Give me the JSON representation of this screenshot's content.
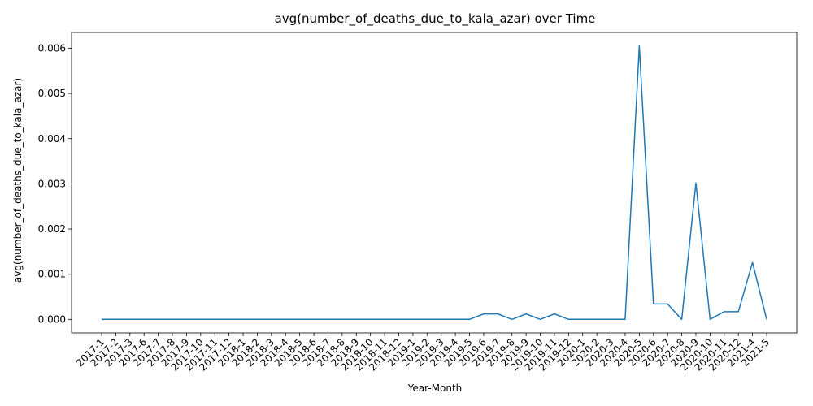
{
  "chart_data": {
    "type": "line",
    "title": "avg(number_of_deaths_due_to_kala_azar) over Time",
    "xlabel": "Year-Month",
    "ylabel": "avg(number_of_deaths_due_to_kala_azar)",
    "x": [
      "2017-1",
      "2017-2",
      "2017-3",
      "2017-6",
      "2017-7",
      "2017-8",
      "2017-9",
      "2017-10",
      "2017-11",
      "2017-12",
      "2018-1",
      "2018-2",
      "2018-3",
      "2018-4",
      "2018-5",
      "2018-6",
      "2018-7",
      "2018-8",
      "2018-9",
      "2018-10",
      "2018-11",
      "2018-12",
      "2019-1",
      "2019-2",
      "2019-3",
      "2019-4",
      "2019-5",
      "2019-6",
      "2019-7",
      "2019-8",
      "2019-9",
      "2019-10",
      "2019-11",
      "2019-12",
      "2020-1",
      "2020-2",
      "2020-3",
      "2020-4",
      "2020-5",
      "2020-6",
      "2020-7",
      "2020-8",
      "2020-9",
      "2020-10",
      "2020-11",
      "2020-12",
      "2021-4",
      "2021-5"
    ],
    "series": [
      {
        "color": "#1f77b4",
        "values": [
          0,
          0,
          0,
          0,
          0,
          0,
          0,
          0,
          0,
          0,
          0,
          0,
          0,
          0,
          0,
          0,
          0,
          0,
          0,
          0,
          0,
          0,
          0,
          0,
          0,
          0,
          0,
          0.00012,
          0.00012,
          0,
          0.00012,
          0,
          0.00012,
          0,
          0,
          0,
          0,
          0,
          0.00605,
          0.00034,
          0.00034,
          0,
          0.00302,
          0,
          0.00017,
          0.00017,
          0.00126,
          0
        ]
      }
    ],
    "yticks": [
      "0.000",
      "0.001",
      "0.002",
      "0.003",
      "0.004",
      "0.005",
      "0.006"
    ],
    "ytick_values": [
      0,
      0.001,
      0.002,
      0.003,
      0.004,
      0.005,
      0.006
    ],
    "ylim": [
      -0.0003,
      0.00635
    ],
    "grid": false,
    "legend": "none"
  }
}
